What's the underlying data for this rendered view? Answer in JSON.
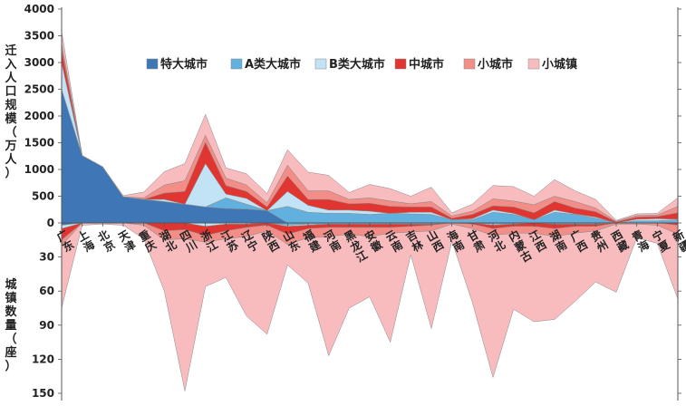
{
  "chart_data": {
    "type": "area",
    "ylabel_top": "迁入人口规模（万人）",
    "ylabel_bottom": "城镇数量（座）",
    "yticks_top": [
      "4000",
      "3500",
      "3000",
      "2500",
      "2000",
      "1500",
      "1000",
      "500",
      "0"
    ],
    "yticks_bottom": [
      "30",
      "60",
      "90",
      "120",
      "150"
    ],
    "ylim_top": [
      0,
      4000
    ],
    "ylim_bottom": [
      0,
      150
    ],
    "legend_position": "top-center",
    "categories": [
      "广东",
      "上海",
      "北京",
      "天津",
      "重庆",
      "湖北",
      "四川",
      "浙江",
      "江苏",
      "辽宁",
      "陕西",
      "山东",
      "福建",
      "河南",
      "黑龙江",
      "安徽",
      "云南",
      "吉林",
      "山西",
      "海南",
      "甘肃",
      "河北",
      "内蒙古",
      "江西",
      "湖南",
      "广西",
      "贵州",
      "西藏",
      "青海",
      "宁夏",
      "新疆"
    ],
    "series_top": [
      {
        "name": "特大城市",
        "color": "#3f77b6",
        "values": [
          2500,
          1260,
          1050,
          490,
          440,
          400,
          350,
          300,
          270,
          260,
          230,
          0,
          0,
          0,
          0,
          0,
          0,
          0,
          0,
          0,
          0,
          0,
          0,
          0,
          0,
          0,
          0,
          0,
          0,
          0,
          0
        ]
      },
      {
        "name": "A类大城市",
        "color": "#62b0de",
        "values": [
          0,
          0,
          0,
          0,
          0,
          0,
          0,
          0,
          200,
          90,
          0,
          310,
          200,
          180,
          180,
          160,
          180,
          170,
          160,
          60,
          60,
          200,
          160,
          60,
          200,
          160,
          90,
          0,
          40,
          40,
          60
        ]
      },
      {
        "name": "B类大城市",
        "color": "#c2e2f5",
        "values": [
          500,
          0,
          0,
          0,
          0,
          40,
          0,
          810,
          70,
          110,
          0,
          280,
          130,
          60,
          60,
          60,
          0,
          30,
          40,
          0,
          20,
          40,
          20,
          0,
          40,
          10,
          20,
          0,
          30,
          40,
          10
        ]
      },
      {
        "name": "中城市",
        "color": "#e13532",
        "values": [
          250,
          0,
          0,
          0,
          0,
          120,
          240,
          400,
          160,
          130,
          70,
          290,
          110,
          200,
          120,
          150,
          130,
          100,
          100,
          30,
          80,
          80,
          120,
          130,
          160,
          110,
          100,
          20,
          40,
          40,
          120
        ]
      },
      {
        "name": "小城市",
        "color": "#f28e87",
        "values": [
          100,
          0,
          0,
          0,
          30,
          150,
          200,
          130,
          140,
          120,
          80,
          200,
          160,
          160,
          80,
          100,
          100,
          60,
          100,
          40,
          60,
          130,
          110,
          150,
          100,
          120,
          70,
          10,
          30,
          30,
          120
        ]
      },
      {
        "name": "小城镇",
        "color": "#f8bcbe",
        "values": [
          230,
          0,
          0,
          20,
          110,
          250,
          320,
          390,
          190,
          210,
          170,
          290,
          350,
          290,
          130,
          250,
          230,
          140,
          270,
          60,
          130,
          250,
          270,
          160,
          310,
          200,
          160,
          20,
          30,
          30,
          160
        ]
      }
    ],
    "series_bottom": [
      {
        "name": "特大城市",
        "color": "#3f77b6",
        "values": [
          2,
          0,
          0,
          0,
          0,
          0,
          0,
          0,
          0,
          0,
          0,
          0,
          0,
          0,
          0,
          0,
          0,
          0,
          0,
          0,
          0,
          0,
          0,
          0,
          0,
          0,
          0,
          0,
          0,
          0,
          0
        ]
      },
      {
        "name": "A类大城市",
        "color": "#62b0de",
        "values": [
          0,
          0,
          0,
          0,
          0,
          0,
          0,
          0,
          0,
          0,
          0,
          2,
          1,
          1,
          1,
          1,
          1,
          1,
          1,
          0,
          0,
          1,
          1,
          0,
          1,
          1,
          1,
          0,
          0,
          0,
          0
        ]
      },
      {
        "name": "B类大城市",
        "color": "#c2e2f5",
        "values": [
          3,
          0,
          0,
          0,
          0,
          0,
          0,
          3,
          1,
          1,
          0,
          1,
          1,
          0,
          0,
          0,
          0,
          0,
          0,
          0,
          0,
          1,
          0,
          0,
          0,
          0,
          0,
          0,
          0,
          0,
          0
        ]
      },
      {
        "name": "中城市",
        "color": "#e13532",
        "values": [
          10,
          0,
          0,
          0,
          0,
          7,
          6,
          8,
          6,
          3,
          2,
          7,
          3,
          3,
          3,
          3,
          3,
          2,
          1,
          0,
          1,
          3,
          2,
          3,
          4,
          2,
          2,
          0,
          0,
          0,
          2
        ]
      },
      {
        "name": "小城市",
        "color": "#f28e87",
        "values": [
          5,
          0,
          0,
          0,
          2,
          8,
          8,
          6,
          7,
          8,
          5,
          9,
          8,
          8,
          6,
          8,
          5,
          5,
          5,
          1,
          4,
          6,
          6,
          6,
          7,
          6,
          4,
          1,
          1,
          2,
          8
        ]
      },
      {
        "name": "小城镇",
        "color": "#f8bcbe",
        "values": [
          55,
          2,
          1,
          2,
          12,
          45,
          134,
          39,
          34,
          70,
          91,
          18,
          40,
          105,
          65,
          53,
          96,
          20,
          86,
          15,
          65,
          125,
          67,
          78,
          73,
          60,
          45,
          60,
          12,
          16,
          57
        ]
      }
    ]
  }
}
